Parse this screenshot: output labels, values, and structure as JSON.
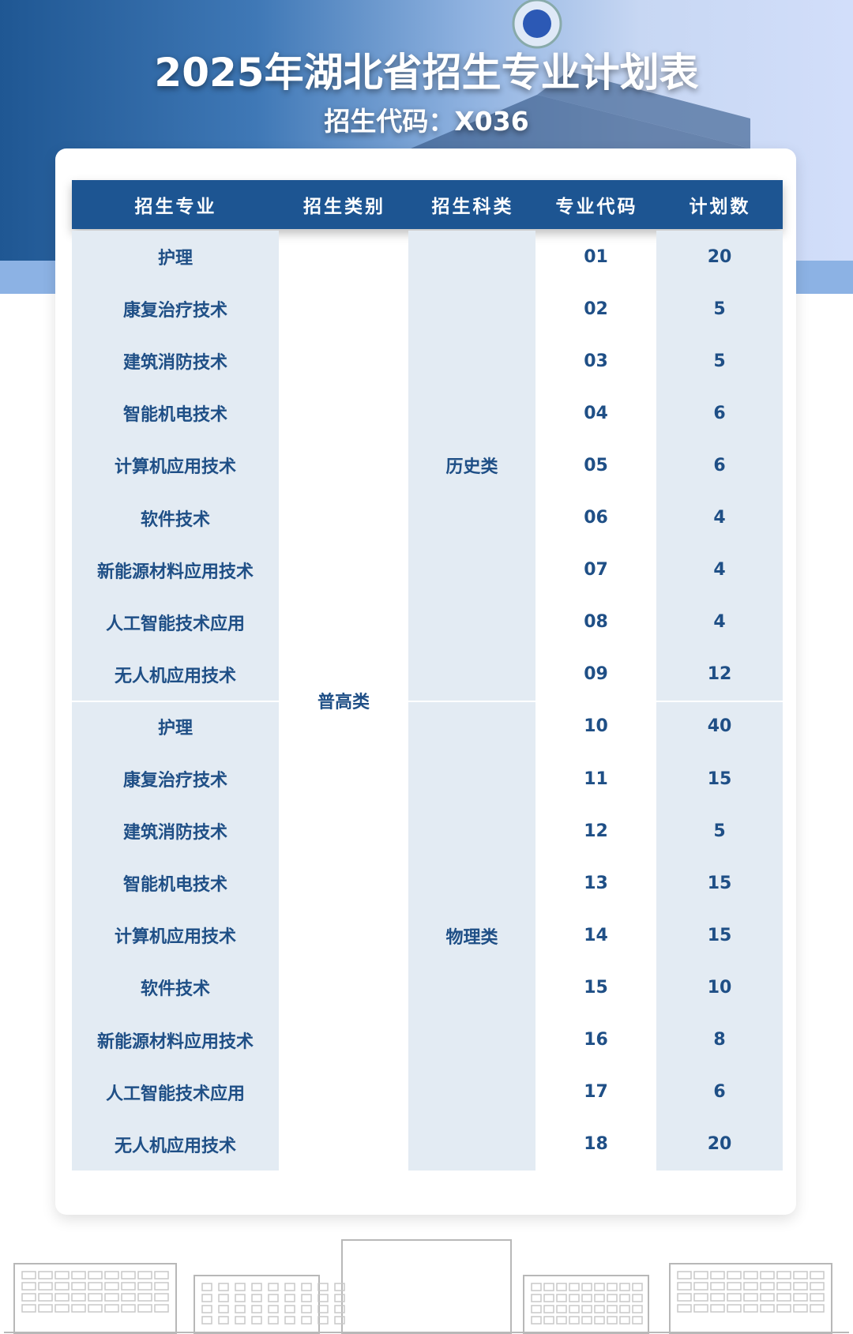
{
  "header": {
    "title": "2025年湖北省招生专业计划表",
    "subtitle": "招生代码：X036"
  },
  "table": {
    "columns": [
      "招生专业",
      "招生类别",
      "招生科类",
      "专业代码",
      "计划数"
    ],
    "category": "普高类",
    "groups": [
      {
        "subject": "历史类",
        "rows": [
          {
            "major": "护理",
            "code": "01",
            "plan": "20"
          },
          {
            "major": "康复治疗技术",
            "code": "02",
            "plan": "5"
          },
          {
            "major": "建筑消防技术",
            "code": "03",
            "plan": "5"
          },
          {
            "major": "智能机电技术",
            "code": "04",
            "plan": "6"
          },
          {
            "major": "计算机应用技术",
            "code": "05",
            "plan": "6"
          },
          {
            "major": "软件技术",
            "code": "06",
            "plan": "4"
          },
          {
            "major": "新能源材料应用技术",
            "code": "07",
            "plan": "4"
          },
          {
            "major": "人工智能技术应用",
            "code": "08",
            "plan": "4"
          },
          {
            "major": "无人机应用技术",
            "code": "09",
            "plan": "12"
          }
        ]
      },
      {
        "subject": "物理类",
        "rows": [
          {
            "major": "护理",
            "code": "10",
            "plan": "40"
          },
          {
            "major": "康复治疗技术",
            "code": "11",
            "plan": "15"
          },
          {
            "major": "建筑消防技术",
            "code": "12",
            "plan": "5"
          },
          {
            "major": "智能机电技术",
            "code": "13",
            "plan": "15"
          },
          {
            "major": "计算机应用技术",
            "code": "14",
            "plan": "15"
          },
          {
            "major": "软件技术",
            "code": "15",
            "plan": "10"
          },
          {
            "major": "新能源材料应用技术",
            "code": "16",
            "plan": "8"
          },
          {
            "major": "人工智能技术应用",
            "code": "17",
            "plan": "6"
          },
          {
            "major": "无人机应用技术",
            "code": "18",
            "plan": "20"
          }
        ]
      }
    ]
  },
  "colors": {
    "header": "#1d5592",
    "text": "#1f4f86",
    "cell": "#e3ebf3"
  }
}
